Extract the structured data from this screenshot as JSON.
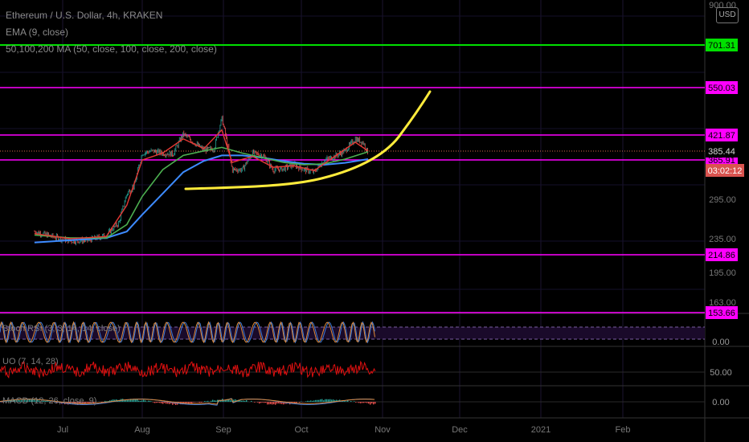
{
  "header": {
    "title": "Ethereum / U.S. Dollar, 4h, KRAKEN",
    "ema": "EMA (9, close)",
    "ma": "50,100,200 MA (50, close, 100, close, 200, close)",
    "currency": "USD"
  },
  "panes": {
    "stoch_label": "Stoch RSI (3, 3, 14, 14, close)",
    "uo_label": "UO (7, 14, 28)",
    "macd_label": "MACD (12, 26, close, 9)"
  },
  "chart_data": {
    "type": "line",
    "symbol": "ETHUSD",
    "interval": "4h",
    "exchange": "KRAKEN",
    "price_axis": {
      "ticks": [
        "900.00",
        "295.00",
        "235.00",
        "195.00",
        "163.00"
      ],
      "scale": "log"
    },
    "x_ticks": [
      "Jul",
      "Aug",
      "Sep",
      "Oct",
      "Nov",
      "Dec",
      "2021",
      "Feb"
    ],
    "horizontal_levels": [
      {
        "value": 701.31,
        "label": "701.31",
        "color": "#00e000"
      },
      {
        "value": 550.03,
        "label": "550.03",
        "color": "#ff00ff"
      },
      {
        "value": 421.87,
        "label": "421.87",
        "color": "#ff00ff"
      },
      {
        "value": 365.91,
        "label": "365.91",
        "color": "#ff00ff"
      },
      {
        "value": 214.86,
        "label": "214.86",
        "color": "#ff00ff"
      },
      {
        "value": 153.66,
        "label": "153.66",
        "color": "#ff00ff"
      }
    ],
    "last_price": {
      "value": 385.44,
      "label": "385.44"
    },
    "countdown": "03:02:12",
    "price_series": {
      "name": "ETHUSD",
      "x": [
        "Jun 20",
        "Jun 27",
        "Jul 4",
        "Jul 11",
        "Jul 18",
        "Jul 23",
        "Jul 26",
        "Jul 29",
        "Aug 1",
        "Aug 5",
        "Aug 9",
        "Aug 13",
        "Aug 17",
        "Aug 21",
        "Aug 25",
        "Aug 29",
        "Sep 1",
        "Sep 3",
        "Sep 5",
        "Sep 9",
        "Sep 13",
        "Sep 17",
        "Sep 21",
        "Sep 25",
        "Sep 29",
        "Oct 3",
        "Oct 7",
        "Oct 11",
        "Oct 15",
        "Oct 19",
        "Oct 23",
        "Oct 26",
        "Oct 28"
      ],
      "y": [
        245,
        238,
        232,
        233,
        240,
        258,
        305,
        320,
        385,
        390,
        385,
        383,
        430,
        410,
        392,
        395,
        470,
        410,
        350,
        350,
        385,
        380,
        350,
        352,
        360,
        350,
        345,
        370,
        378,
        390,
        418,
        410,
        385
      ]
    },
    "ema_series": {
      "x": [
        "Jun 20",
        "Jul 4",
        "Jul 18",
        "Jul 26",
        "Aug 1",
        "Aug 9",
        "Aug 17",
        "Aug 25",
        "Sep 1",
        "Sep 5",
        "Sep 13",
        "Sep 21",
        "Sep 29",
        "Oct 7",
        "Oct 15",
        "Oct 23",
        "Oct 28"
      ],
      "y": [
        242,
        235,
        238,
        285,
        370,
        385,
        418,
        395,
        440,
        365,
        378,
        355,
        358,
        348,
        378,
        410,
        390
      ]
    },
    "ma50_series": {
      "x": [
        "Jun 20",
        "Jul 4",
        "Jul 18",
        "Jul 26",
        "Aug 1",
        "Aug 9",
        "Aug 17",
        "Aug 25",
        "Sep 1",
        "Sep 9",
        "Sep 17",
        "Sep 25",
        "Oct 3",
        "Oct 11",
        "Oct 19",
        "Oct 28"
      ],
      "y": [
        240,
        236,
        236,
        255,
        300,
        350,
        380,
        390,
        398,
        385,
        375,
        365,
        360,
        362,
        372,
        388
      ]
    },
    "ma100_series": {
      "x": [
        "Jun 20",
        "Jul 4",
        "Jul 18",
        "Jul 26",
        "Aug 1",
        "Aug 9",
        "Aug 17",
        "Aug 25",
        "Sep 1",
        "Sep 9",
        "Sep 17",
        "Sep 25",
        "Oct 3",
        "Oct 11",
        "Oct 19",
        "Oct 28"
      ],
      "y": [
        230,
        233,
        236,
        245,
        270,
        305,
        345,
        368,
        380,
        380,
        375,
        368,
        362,
        360,
        364,
        372
      ]
    },
    "yellow_curve_label": "",
    "indicator_axis": {
      "stoch_tick": "0.00",
      "uo_tick": "50.00",
      "macd_tick": "0.00"
    }
  }
}
